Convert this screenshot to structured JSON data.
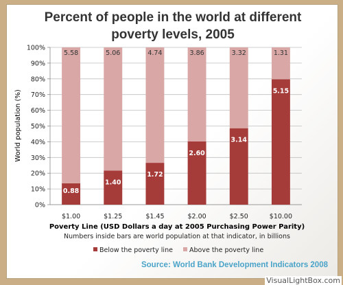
{
  "chart_data": {
    "type": "bar",
    "stacked": true,
    "title_lines": [
      "Percent of people in the world at different",
      "poverty levels, 2005"
    ],
    "categories": [
      "$1.00",
      "$1.25",
      "$1.45",
      "$2.00",
      "$2.50",
      "$10.00"
    ],
    "series": [
      {
        "name": "Below the poverty line",
        "color": "#a53c3a",
        "values": [
          13.6,
          21.7,
          26.6,
          40.2,
          48.6,
          79.7
        ],
        "labels": [
          "0.88",
          "1.40",
          "1.72",
          "2.60",
          "3.14",
          "5.15"
        ]
      },
      {
        "name": "Above the poverty line",
        "color": "#d8a7a6",
        "values": [
          86.4,
          78.3,
          73.4,
          59.8,
          51.4,
          20.3
        ],
        "labels": [
          "5.58",
          "5.06",
          "4.74",
          "3.86",
          "3.32",
          "1.31"
        ]
      }
    ],
    "ylim": [
      0,
      100
    ],
    "yticks": [
      "0%",
      "10%",
      "20%",
      "30%",
      "40%",
      "50%",
      "60%",
      "70%",
      "80%",
      "90%",
      "100%"
    ],
    "ylabel": "World population (%)",
    "xlabel": "Poverty Line (USD Dollars a day at 2005 Purchasing Power Parity)",
    "note": "Numbers inside bars are world population at that indicator, in billions",
    "legend_position": "bottom",
    "source": "Source: World Bank Development Indicators 2008",
    "grid": true
  },
  "watermark": "VisualLightBox.com"
}
